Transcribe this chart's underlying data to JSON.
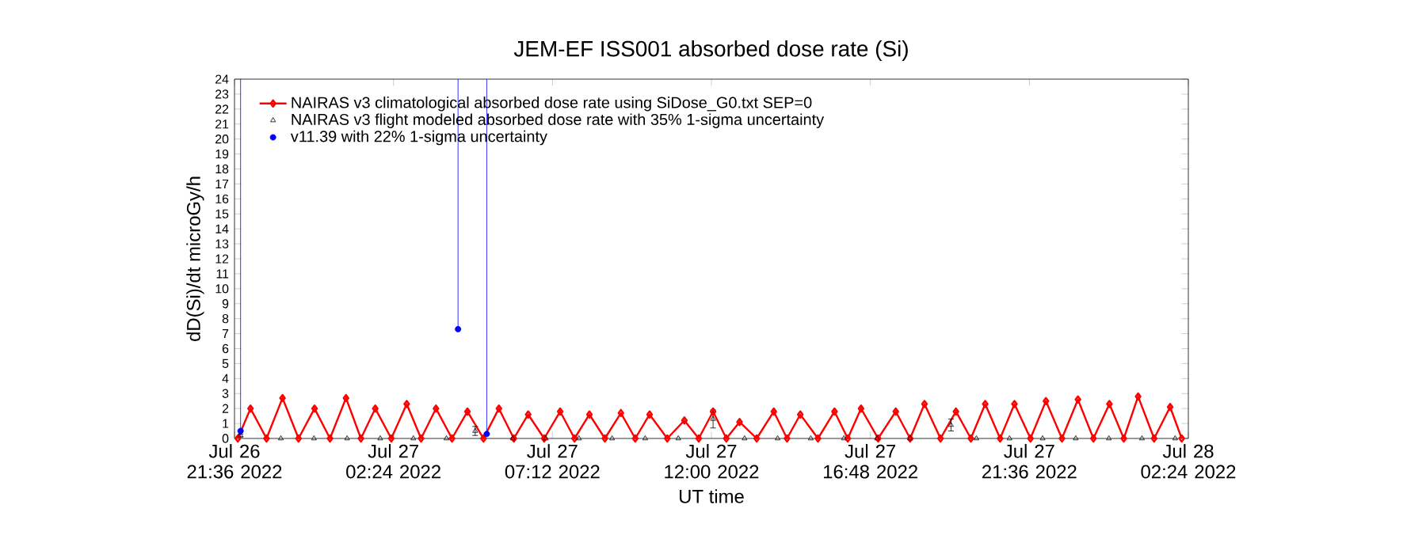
{
  "chart_data": {
    "type": "line",
    "title": "JEM-EF ISS001 absorbed dose rate (Si)",
    "xlabel": "UT time",
    "ylabel": "dD(Si)/dt microGy/h",
    "xlim": [
      "2022-07-26T21:36",
      "2022-07-28T02:24"
    ],
    "ylim": [
      0,
      24
    ],
    "xticks": [
      {
        "value": "2022-07-26T21:36",
        "label": "Jul 26 21:36 2022"
      },
      {
        "value": "2022-07-27T02:24",
        "label": "Jul 27 02:24 2022"
      },
      {
        "value": "2022-07-27T07:12",
        "label": "Jul 27 07:12 2022"
      },
      {
        "value": "2022-07-27T12:00",
        "label": "Jul 27 12:00 2022"
      },
      {
        "value": "2022-07-27T16:48",
        "label": "Jul 27 16:48 2022"
      },
      {
        "value": "2022-07-27T21:36",
        "label": "Jul 27 21:36 2022"
      },
      {
        "value": "2022-07-28T02:24",
        "label": "Jul 28 02:24 2022"
      }
    ],
    "yticks": [
      0,
      1,
      2,
      3,
      4,
      5,
      6,
      7,
      8,
      9,
      10,
      11,
      12,
      13,
      14,
      15,
      16,
      17,
      18,
      19,
      20,
      21,
      22,
      23,
      24
    ],
    "legend": "top left",
    "grid": false,
    "series": [
      {
        "name": "NAIRAS v3 climatological absorbed dose rate using SiDose_G0.txt SEP=0",
        "type": "line",
        "marker": "diamond",
        "color": "#ff0000",
        "x": [
          "2022-07-26T21:42",
          "2022-07-26T22:05",
          "2022-07-26T22:34",
          "2022-07-26T23:03",
          "2022-07-26T23:32",
          "2022-07-27T00:01",
          "2022-07-27T00:29",
          "2022-07-27T00:58",
          "2022-07-27T01:25",
          "2022-07-27T01:51",
          "2022-07-27T02:20",
          "2022-07-27T02:48",
          "2022-07-27T03:14",
          "2022-07-27T03:41",
          "2022-07-27T04:10",
          "2022-07-27T04:38",
          "2022-07-27T05:07",
          "2022-07-27T05:35",
          "2022-07-27T06:02",
          "2022-07-27T06:28",
          "2022-07-27T06:57",
          "2022-07-27T07:26",
          "2022-07-27T07:52",
          "2022-07-27T08:19",
          "2022-07-27T08:47",
          "2022-07-27T09:16",
          "2022-07-27T09:42",
          "2022-07-27T10:08",
          "2022-07-27T10:40",
          "2022-07-27T11:11",
          "2022-07-27T11:37",
          "2022-07-27T12:03",
          "2022-07-27T12:27",
          "2022-07-27T12:51",
          "2022-07-27T13:22",
          "2022-07-27T13:53",
          "2022-07-27T14:17",
          "2022-07-27T14:41",
          "2022-07-27T15:13",
          "2022-07-27T15:43",
          "2022-07-27T16:07",
          "2022-07-27T16:31",
          "2022-07-27T17:02",
          "2022-07-27T17:34",
          "2022-07-27T18:00",
          "2022-07-27T18:26",
          "2022-07-27T18:55",
          "2022-07-27T19:23",
          "2022-07-27T19:50",
          "2022-07-27T20:16",
          "2022-07-27T20:43",
          "2022-07-27T21:09",
          "2022-07-27T21:38",
          "2022-07-27T22:06",
          "2022-07-27T22:35",
          "2022-07-27T23:04",
          "2022-07-27T23:32",
          "2022-07-28T00:01",
          "2022-07-28T00:27",
          "2022-07-28T00:53",
          "2022-07-28T01:22",
          "2022-07-28T01:51",
          "2022-07-28T02:12"
        ],
        "values": [
          0,
          2,
          0,
          2.7,
          0,
          2,
          0,
          2.7,
          0,
          2,
          0,
          2.3,
          0,
          2,
          0,
          1.8,
          0,
          2,
          0,
          1.6,
          0,
          1.8,
          0,
          1.6,
          0,
          1.7,
          0,
          1.6,
          0,
          1.2,
          0,
          1.8,
          0,
          1.1,
          0,
          1.8,
          0,
          1.6,
          0,
          1.8,
          0,
          2,
          0,
          1.8,
          0,
          2.3,
          0,
          1.8,
          0,
          2.3,
          0,
          2.3,
          0,
          2.5,
          0,
          2.6,
          0,
          2.3,
          0,
          2.8,
          0,
          2.1,
          0
        ]
      },
      {
        "name": "NAIRAS v3 flight modeled absorbed dose rate with 35% 1-sigma uncertainty",
        "type": "scatter",
        "marker": "triangle",
        "color": "#000000",
        "x": [
          "2022-07-26T21:47",
          "2022-07-26T23:00",
          "2022-07-27T00:00",
          "2022-07-27T01:00",
          "2022-07-27T02:00",
          "2022-07-27T03:00",
          "2022-07-27T04:00",
          "2022-07-27T04:52",
          "2022-07-27T06:00",
          "2022-07-27T07:00",
          "2022-07-27T08:00",
          "2022-07-27T09:00",
          "2022-07-27T10:00",
          "2022-07-27T11:00",
          "2022-07-27T12:03",
          "2022-07-27T13:00",
          "2022-07-27T14:00",
          "2022-07-27T15:00",
          "2022-07-27T16:00",
          "2022-07-27T17:00",
          "2022-07-27T18:00",
          "2022-07-27T19:14",
          "2022-07-27T20:00",
          "2022-07-27T21:00",
          "2022-07-27T22:00",
          "2022-07-27T23:00",
          "2022-07-28T00:00",
          "2022-07-28T01:00",
          "2022-07-28T02:00"
        ],
        "values": [
          0.2,
          0,
          0,
          0,
          0,
          0,
          0,
          0.5,
          0,
          0,
          0,
          0,
          0,
          0,
          1.3,
          0,
          0,
          0,
          0,
          0,
          0,
          0.9,
          0,
          0,
          0,
          0,
          0,
          0,
          0
        ],
        "errors": [
          0.1,
          null,
          null,
          null,
          null,
          null,
          null,
          0.3,
          null,
          null,
          null,
          null,
          null,
          null,
          0.6,
          null,
          null,
          null,
          null,
          null,
          null,
          0.4,
          null,
          null,
          null,
          null,
          null,
          null,
          null
        ]
      },
      {
        "name": "v11.39 with 22% 1-sigma uncertainty",
        "type": "scatter",
        "marker": "circle",
        "color": "#0000ff",
        "x": [
          "2022-07-26T21:47",
          "2022-07-27T04:21",
          "2022-07-27T05:13"
        ],
        "values": [
          0.5,
          7.3,
          0.3
        ],
        "errors": [
          [
            0.5,
            24
          ],
          [
            7.3,
            24
          ],
          [
            0.3,
            24
          ]
        ]
      }
    ]
  }
}
